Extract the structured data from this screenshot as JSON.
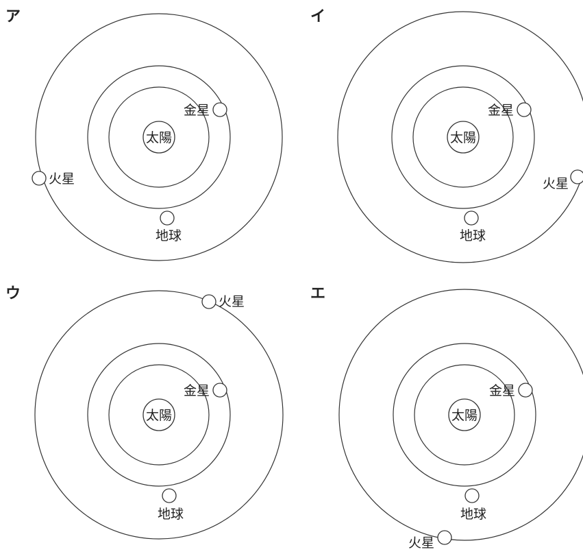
{
  "panels": [
    {
      "id": "a",
      "label": "ア",
      "sun": "太陽",
      "venus": "金星",
      "earth": "地球",
      "mars": "火星"
    },
    {
      "id": "i",
      "label": "イ",
      "sun": "太陽",
      "venus": "金星",
      "earth": "地球",
      "mars": "火星"
    },
    {
      "id": "u",
      "label": "ウ",
      "sun": "太陽",
      "venus": "金星",
      "earth": "地球",
      "mars": "火星"
    },
    {
      "id": "e",
      "label": "エ",
      "sun": "太陽",
      "venus": "金星",
      "earth": "地球",
      "mars": "火星"
    }
  ]
}
